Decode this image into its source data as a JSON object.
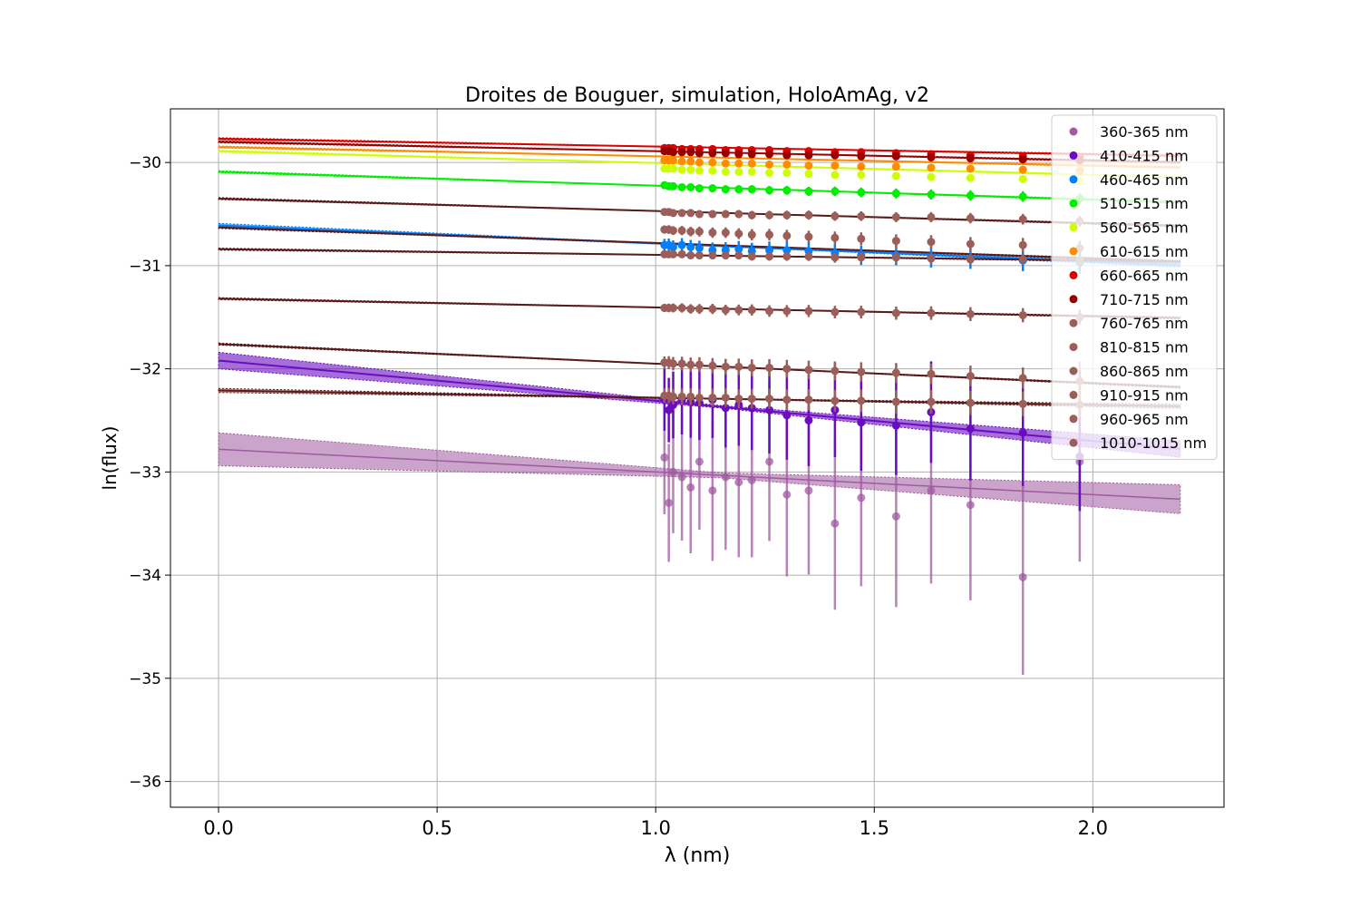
{
  "chart_data": {
    "type": "line",
    "title": "Droites de Bouguer, simulation, HoloAmAg, v2",
    "xlabel": "λ (nm)",
    "ylabel": "ln(flux)",
    "xlim": [
      -0.11,
      2.3
    ],
    "ylim": [
      -36.25,
      -29.48
    ],
    "xticks": [
      0.0,
      0.5,
      1.0,
      1.5,
      2.0
    ],
    "xtick_labels": [
      "0.0",
      "0.5",
      "1.0",
      "1.5",
      "2.0"
    ],
    "yticks": [
      -36,
      -35,
      -34,
      -33,
      -32,
      -31,
      -30
    ],
    "ytick_labels": [
      "−36",
      "−35",
      "−34",
      "−33",
      "−32",
      "−31",
      "−30"
    ],
    "grid": true,
    "legend_position": "top-right",
    "airmass": [
      1.02,
      1.03,
      1.04,
      1.06,
      1.08,
      1.1,
      1.13,
      1.16,
      1.19,
      1.22,
      1.26,
      1.3,
      1.35,
      1.41,
      1.47,
      1.55,
      1.63,
      1.72,
      1.84,
      1.97
    ],
    "fit_x": [
      0.0,
      2.2
    ],
    "series": [
      {
        "name": "360-365 nm",
        "color": "#a05aa0",
        "intercept": -32.78,
        "slope": -0.22,
        "band": [
          0.16,
          0.14
        ],
        "errors": 0.55,
        "points": [
          -32.86,
          -33.3,
          -33.0,
          -33.05,
          -33.15,
          -32.9,
          -33.18,
          -33.05,
          -33.1,
          -33.08,
          -32.9,
          -33.22,
          -33.18,
          -33.5,
          -33.25,
          -33.43,
          -33.18,
          -33.32,
          -34.02,
          -32.9
        ]
      },
      {
        "name": "410-415 nm",
        "color": "#6a0dc0",
        "intercept": -31.92,
        "slope": -0.39,
        "band": [
          0.08,
          0.08
        ],
        "errors": 0.3,
        "points": [
          -32.3,
          -32.4,
          -32.35,
          -32.3,
          -32.32,
          -32.33,
          -32.3,
          -32.38,
          -32.35,
          -32.38,
          -32.4,
          -32.45,
          -32.5,
          -32.4,
          -32.52,
          -32.55,
          -32.42,
          -32.58,
          -32.62,
          -32.85
        ]
      },
      {
        "name": "460-465 nm",
        "color": "#0080ff",
        "intercept": -30.61,
        "slope": -0.175,
        "band": [
          0.02,
          0.02
        ],
        "errors": 0.06,
        "points": [
          -30.8,
          -30.8,
          -30.82,
          -30.8,
          -30.82,
          -30.83,
          -30.85,
          -30.85,
          -30.84,
          -30.86,
          -30.85,
          -30.85,
          -30.86,
          -30.88,
          -30.9,
          -30.9,
          -30.92,
          -30.93,
          -30.95,
          -30.97
        ]
      },
      {
        "name": "510-515 nm",
        "color": "#00ee00",
        "intercept": -30.09,
        "slope": -0.135,
        "band": [
          0.01,
          0.01
        ],
        "errors": 0.03,
        "points": [
          -30.22,
          -30.23,
          -30.23,
          -30.24,
          -30.24,
          -30.25,
          -30.25,
          -30.26,
          -30.26,
          -30.26,
          -30.27,
          -30.27,
          -30.28,
          -30.28,
          -30.29,
          -30.3,
          -30.31,
          -30.32,
          -30.33,
          -30.35
        ]
      },
      {
        "name": "560-565 nm",
        "color": "#ccff00",
        "intercept": -29.89,
        "slope": -0.115,
        "band": [
          0.01,
          0.01
        ],
        "errors": 0.02,
        "points": [
          -30.06,
          -30.06,
          -30.06,
          -30.07,
          -30.07,
          -30.08,
          -30.08,
          -30.09,
          -30.09,
          -30.09,
          -30.1,
          -30.1,
          -30.11,
          -30.12,
          -30.12,
          -30.13,
          -30.14,
          -30.15,
          -30.16,
          -30.18
        ]
      },
      {
        "name": "610-615 nm",
        "color": "#ff8c00",
        "intercept": -29.85,
        "slope": -0.09,
        "band": [
          0.01,
          0.01
        ],
        "errors": 0.02,
        "points": [
          -29.98,
          -29.98,
          -29.98,
          -29.99,
          -29.99,
          -30.0,
          -30.0,
          -30.01,
          -30.01,
          -30.01,
          -30.02,
          -30.02,
          -30.03,
          -30.03,
          -30.04,
          -30.04,
          -30.05,
          -30.06,
          -30.07,
          -30.08
        ]
      },
      {
        "name": "660-665 nm",
        "color": "#dd0000",
        "intercept": -29.77,
        "slope": -0.075,
        "band": [
          0.01,
          0.01
        ],
        "errors": 0.02,
        "points": [
          -29.86,
          -29.86,
          -29.86,
          -29.87,
          -29.87,
          -29.87,
          -29.87,
          -29.88,
          -29.88,
          -29.88,
          -29.88,
          -29.89,
          -29.89,
          -29.9,
          -29.9,
          -29.91,
          -29.92,
          -29.93,
          -29.94,
          -29.95
        ]
      },
      {
        "name": "710-715 nm",
        "color": "#990000",
        "intercept": -29.8,
        "slope": -0.09,
        "band": [
          0.01,
          0.01
        ],
        "errors": 0.02,
        "points": [
          -29.89,
          -29.89,
          -29.9,
          -29.9,
          -29.9,
          -29.91,
          -29.91,
          -29.91,
          -29.92,
          -29.92,
          -29.92,
          -29.93,
          -29.93,
          -29.93,
          -29.94,
          -29.94,
          -29.95,
          -29.96,
          -29.97,
          -29.98
        ]
      },
      {
        "name": "760-765 nm",
        "color": "#9c5e58",
        "intercept": -30.35,
        "slope": -0.12,
        "band": [
          0.01,
          0.01
        ],
        "errors": 0.03,
        "points": [
          -30.48,
          -30.48,
          -30.49,
          -30.49,
          -30.49,
          -30.5,
          -30.5,
          -30.5,
          -30.5,
          -30.51,
          -30.51,
          -30.51,
          -30.51,
          -30.52,
          -30.52,
          -30.53,
          -30.53,
          -30.54,
          -30.55,
          -30.57
        ]
      },
      {
        "name": "810-815 nm",
        "color": "#9c5e58",
        "intercept": -30.84,
        "slope": -0.055,
        "band": [
          0.01,
          0.01
        ],
        "errors": 0.03,
        "points": [
          -30.89,
          -30.89,
          -30.89,
          -30.89,
          -30.9,
          -30.9,
          -30.9,
          -30.9,
          -30.9,
          -30.91,
          -30.91,
          -30.91,
          -30.91,
          -30.92,
          -30.92,
          -30.92,
          -30.93,
          -30.94,
          -30.94,
          -30.95
        ]
      },
      {
        "name": "860-865 nm",
        "color": "#9c5e58",
        "intercept": -31.32,
        "slope": -0.085,
        "band": [
          0.01,
          0.01
        ],
        "errors": 0.04,
        "points": [
          -31.41,
          -31.41,
          -31.41,
          -31.41,
          -31.42,
          -31.42,
          -31.42,
          -31.43,
          -31.43,
          -31.43,
          -31.44,
          -31.44,
          -31.44,
          -31.45,
          -31.45,
          -31.46,
          -31.46,
          -31.47,
          -31.48,
          -31.5
        ]
      },
      {
        "name": "910-915 nm",
        "color": "#9c5e58",
        "intercept": -31.76,
        "slope": -0.19,
        "band": [
          0.01,
          0.01
        ],
        "errors": 0.06,
        "points": [
          -31.94,
          -31.94,
          -31.95,
          -31.95,
          -31.96,
          -31.96,
          -31.97,
          -31.98,
          -31.98,
          -31.99,
          -31.99,
          -32.0,
          -32.01,
          -32.02,
          -32.03,
          -32.04,
          -32.05,
          -32.07,
          -32.09,
          -32.12
        ]
      },
      {
        "name": "960-965 nm",
        "color": "#9c5e58",
        "intercept": -30.63,
        "slope": -0.15,
        "band": [
          0.01,
          0.01
        ],
        "errors": 0.04,
        "points": [
          -30.65,
          -30.65,
          -30.66,
          -30.66,
          -30.67,
          -30.67,
          -30.68,
          -30.68,
          -30.69,
          -30.7,
          -30.7,
          -30.71,
          -30.72,
          -30.73,
          -30.74,
          -30.76,
          -30.77,
          -30.79,
          -30.8,
          -30.83
        ]
      },
      {
        "name": "1010-1015 nm",
        "color": "#9c5e58",
        "intercept": -32.21,
        "slope": -0.07,
        "band": [
          0.02,
          0.02
        ],
        "errors": 0.07,
        "points": [
          -32.26,
          -32.26,
          -32.27,
          -32.27,
          -32.27,
          -32.28,
          -32.28,
          -32.28,
          -32.29,
          -32.29,
          -32.29,
          -32.3,
          -32.3,
          -32.31,
          -32.31,
          -32.32,
          -32.32,
          -32.33,
          -32.34,
          -32.35
        ]
      }
    ]
  }
}
